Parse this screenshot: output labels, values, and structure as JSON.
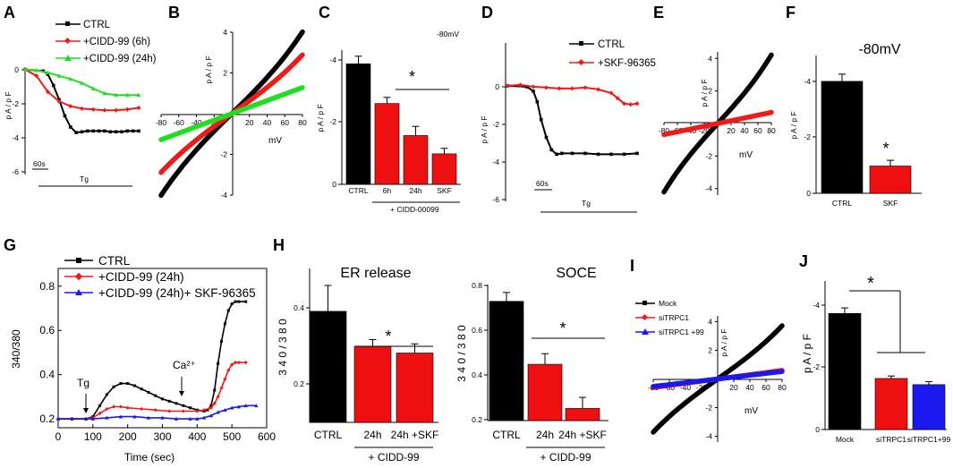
{
  "figure": {
    "panel_labels": [
      "A",
      "B",
      "C",
      "D",
      "E",
      "F",
      "G",
      "H",
      "I",
      "J"
    ]
  },
  "colors": {
    "ctrl": "#000000",
    "cidd6h": "#ee1b1b",
    "cidd24h": "#22dd22",
    "skf": "#ee1b1b",
    "red_bar": "#ee1010",
    "blue": "#1a1aee"
  },
  "chart_data": [
    {
      "panel": "A",
      "type": "line",
      "ylabel": "p A / p F",
      "yticks": [
        "0",
        "-2",
        "-4",
        "-6"
      ],
      "ylim": [
        -6.4,
        0.2
      ],
      "scale_label": "60s",
      "drug_label": "Tg",
      "series": [
        {
          "name": "CTRL",
          "color": "#000000",
          "marker": "square",
          "x": [
            0,
            0.16,
            0.2,
            0.25,
            0.3,
            0.35,
            0.4,
            0.45,
            0.5,
            0.55,
            0.6,
            0.65,
            0.7,
            0.75,
            0.8,
            0.85,
            0.9,
            0.95,
            1.0
          ],
          "y": [
            0,
            -0.1,
            -0.3,
            -1.0,
            -1.9,
            -2.9,
            -3.6,
            -3.95,
            -3.9,
            -3.85,
            -3.85,
            -3.85,
            -3.85,
            -3.9,
            -3.9,
            -3.9,
            -3.85,
            -3.85,
            -3.85
          ]
        },
        {
          "name": "+CIDD-99 (6h)",
          "color": "#ee1b1b",
          "marker": "diamond",
          "x": [
            0,
            0.1,
            0.2,
            0.3,
            0.4,
            0.5,
            0.6,
            0.7,
            0.8,
            0.9,
            1.0
          ],
          "y": [
            0,
            -0.4,
            -1.4,
            -2.0,
            -2.3,
            -2.45,
            -2.5,
            -2.55,
            -2.55,
            -2.5,
            -2.4
          ]
        },
        {
          "name": "+CIDD-99 (24h)",
          "color": "#22dd22",
          "marker": "triangle",
          "x": [
            0,
            0.1,
            0.2,
            0.3,
            0.4,
            0.5,
            0.6,
            0.7,
            0.8,
            0.9,
            1.0
          ],
          "y": [
            0,
            -0.05,
            -0.2,
            -0.4,
            -0.6,
            -0.85,
            -1.2,
            -1.5,
            -1.6,
            -1.6,
            -1.6
          ]
        }
      ]
    },
    {
      "panel": "B",
      "type": "line",
      "xlabel": "mV",
      "ylabel": "p A / p F",
      "xticks": [
        "-80",
        "-60",
        "-40",
        "-20",
        "20",
        "40",
        "60",
        "80"
      ],
      "yticks": [
        "4",
        "2",
        "-2",
        "-4"
      ],
      "xlim": [
        -80,
        80
      ],
      "ylim": [
        -4,
        4
      ],
      "series": [
        {
          "name": "CTRL",
          "color": "#000000",
          "slope": 0.0425,
          "curve": 1.2e-06
        },
        {
          "name": "+CIDD-99 (6h)",
          "color": "#ee1b1b",
          "slope": 0.031,
          "curve": 8e-07
        },
        {
          "name": "+CIDD-99 (24h)",
          "color": "#22dd22",
          "slope": 0.016,
          "curve": 0.0
        }
      ]
    },
    {
      "panel": "C",
      "type": "bar",
      "title": "-80mV",
      "ylabel": "p A / p F",
      "yticks": [
        "-4",
        "-2",
        "0"
      ],
      "ylim": [
        0,
        -4.4
      ],
      "categories": [
        "CTRL",
        "6h",
        "24h",
        "SKF"
      ],
      "values": [
        -3.95,
        -2.65,
        -1.6,
        -1.0
      ],
      "errors": [
        0.25,
        0.2,
        0.3,
        0.18
      ],
      "colors": [
        "#000000",
        "#ee1010",
        "#ee1010",
        "#ee1010"
      ],
      "group_label": "+ CIDD-00099",
      "annotation": "*"
    },
    {
      "panel": "D",
      "type": "line",
      "ylabel": "p A / p F",
      "yticks": [
        "0",
        "-2",
        "-4",
        "-6"
      ],
      "ylim": [
        -6.4,
        0.4
      ],
      "scale_label": "60s",
      "drug_label": "Tg",
      "series": [
        {
          "name": "CTRL",
          "color": "#000000",
          "marker": "square",
          "x": [
            0,
            0.15,
            0.2,
            0.23,
            0.26,
            0.3,
            0.34,
            0.38,
            0.42,
            0.5,
            0.6,
            0.7,
            0.8,
            0.9,
            1.0
          ],
          "y": [
            0,
            -0.05,
            -0.3,
            -0.9,
            -1.9,
            -2.9,
            -3.6,
            -3.85,
            -3.8,
            -3.8,
            -3.8,
            -3.85,
            -3.85,
            -3.85,
            -3.8
          ]
        },
        {
          "name": "+SKF-96365",
          "color": "#ee1b1b",
          "marker": "diamond",
          "x": [
            0,
            0.1,
            0.2,
            0.3,
            0.4,
            0.5,
            0.6,
            0.7,
            0.8,
            0.85,
            0.9,
            0.95,
            1.0
          ],
          "y": [
            0,
            0.05,
            -0.05,
            -0.1,
            -0.15,
            -0.15,
            -0.1,
            -0.2,
            -0.4,
            -0.7,
            -1.0,
            -1.05,
            -1.0
          ]
        }
      ]
    },
    {
      "panel": "E",
      "type": "line",
      "xlabel": "mV",
      "ylabel": "p A / p F",
      "xticks": [
        "-80",
        "-60",
        "-40",
        "-20",
        "20",
        "40",
        "60",
        "80"
      ],
      "yticks": [
        "4",
        "2",
        "-2",
        "-4"
      ],
      "xlim": [
        -80,
        80
      ],
      "ylim": [
        -4.4,
        4.4
      ],
      "series": [
        {
          "name": "CTRL",
          "color": "#000000",
          "slope": 0.045,
          "curve": 1.2e-06
        },
        {
          "name": "+SKF-96365",
          "color": "#ee1b1b",
          "slope": 0.0085,
          "curve": 0.0
        }
      ]
    },
    {
      "panel": "F",
      "type": "bar",
      "title": "-80mV",
      "ylabel": "p A / p F",
      "yticks": [
        "-4",
        "-2",
        "0"
      ],
      "ylim": [
        0,
        -4.8
      ],
      "categories": [
        "CTRL",
        "SKF"
      ],
      "values": [
        -3.9,
        -0.95
      ],
      "errors": [
        0.25,
        0.2
      ],
      "colors": [
        "#000000",
        "#ee1010"
      ],
      "annotation": "*"
    },
    {
      "panel": "G",
      "type": "line",
      "xlabel": "Time (sec)",
      "ylabel": "340/380",
      "xticks": [
        "0",
        "100",
        "200",
        "300",
        "400",
        "500",
        "600"
      ],
      "yticks": [
        "0.2",
        "0.4",
        "0.6",
        "0.8"
      ],
      "xlim": [
        0,
        600
      ],
      "ylim": [
        0.16,
        0.88
      ],
      "annotations": [
        {
          "text": "Tg",
          "x": 90
        },
        {
          "text": "Ca²⁺",
          "x": 418
        }
      ],
      "series": [
        {
          "name": "CTRL",
          "color": "#000000",
          "marker": "square",
          "x": [
            0,
            40,
            80,
            100,
            120,
            140,
            160,
            180,
            200,
            220,
            240,
            260,
            280,
            300,
            320,
            340,
            360,
            380,
            400,
            420,
            430,
            440,
            450,
            460,
            470,
            480,
            490,
            500,
            510,
            520,
            540
          ],
          "y": [
            0.2,
            0.2,
            0.2,
            0.21,
            0.26,
            0.31,
            0.345,
            0.36,
            0.36,
            0.35,
            0.335,
            0.32,
            0.305,
            0.29,
            0.28,
            0.27,
            0.26,
            0.25,
            0.24,
            0.235,
            0.24,
            0.26,
            0.33,
            0.45,
            0.55,
            0.63,
            0.69,
            0.72,
            0.73,
            0.73,
            0.73
          ]
        },
        {
          "name": "+CIDD-99 (24h)",
          "color": "#ee1b1b",
          "marker": "diamond",
          "x": [
            0,
            40,
            80,
            100,
            120,
            140,
            160,
            180,
            200,
            240,
            280,
            320,
            360,
            400,
            420,
            440,
            450,
            460,
            470,
            480,
            490,
            500,
            510,
            520,
            540
          ],
          "y": [
            0.2,
            0.2,
            0.2,
            0.205,
            0.225,
            0.245,
            0.255,
            0.255,
            0.25,
            0.245,
            0.24,
            0.235,
            0.235,
            0.235,
            0.24,
            0.25,
            0.27,
            0.3,
            0.34,
            0.38,
            0.42,
            0.445,
            0.455,
            0.455,
            0.455
          ]
        },
        {
          "name": "+CIDD-99 (24h)+ SKF-96365",
          "color": "#1a1aee",
          "marker": "triangle",
          "x": [
            0,
            40,
            80,
            100,
            140,
            180,
            220,
            260,
            300,
            340,
            380,
            400,
            420,
            440,
            460,
            480,
            500,
            520,
            540,
            570
          ],
          "y": [
            0.2,
            0.2,
            0.2,
            0.2,
            0.205,
            0.21,
            0.21,
            0.205,
            0.205,
            0.2,
            0.2,
            0.2,
            0.205,
            0.215,
            0.23,
            0.24,
            0.25,
            0.255,
            0.26,
            0.26
          ]
        }
      ]
    },
    {
      "panel": "H1",
      "type": "bar",
      "title": "ER release",
      "ylabel": "3 4 0 / 3 8 0",
      "yticks": [
        "0.4",
        "0.2"
      ],
      "ylim": [
        0,
        0.5
      ],
      "categories": [
        "CTRL",
        "24h",
        "24h +SKF"
      ],
      "values": [
        0.365,
        0.25,
        0.228
      ],
      "errors": [
        0.085,
        0.022,
        0.03
      ],
      "colors": [
        "#000000",
        "#ee1010",
        "#ee1010"
      ],
      "group_label": "+ CIDD-99",
      "annotation": "*"
    },
    {
      "panel": "H2",
      "type": "bar",
      "title": "SOCE",
      "ylabel": "3 4 0 / 3 8 0",
      "yticks": [
        "0.8",
        "0.6",
        "0.4",
        "0.2"
      ],
      "ylim": [
        0.2,
        0.82
      ],
      "categories": [
        "CTRL",
        "24h",
        "24h +SKF"
      ],
      "values": [
        0.74,
        0.455,
        0.255
      ],
      "errors": [
        0.04,
        0.048,
        0.05
      ],
      "colors": [
        "#000000",
        "#ee1010",
        "#ee1010"
      ],
      "group_label": "+ CIDD-99",
      "annotation": "*"
    },
    {
      "panel": "I",
      "type": "line",
      "xlabel": "mV",
      "ylabel": "p A / p F",
      "xticks": [
        "-80",
        "-60",
        "-40",
        "-20",
        "20",
        "40",
        "60",
        "80"
      ],
      "yticks": [
        "4",
        "2",
        "-2",
        "-4"
      ],
      "xlim": [
        -80,
        80
      ],
      "ylim": [
        -4.4,
        4.4
      ],
      "series": [
        {
          "name": "Mock",
          "color": "#000000",
          "slope": 0.04,
          "curve": 1e-06
        },
        {
          "name": "siTRPC1",
          "color": "#ee1b1b",
          "slope": 0.0075,
          "curve": 0.0
        },
        {
          "name": "siTRPC1 +99",
          "color": "#1a1aee",
          "slope": 0.0065,
          "curve": 0.0
        }
      ]
    },
    {
      "panel": "J",
      "type": "bar",
      "ylabel": "p A / p F",
      "yticks": [
        "-4",
        "-2",
        "0"
      ],
      "ylim": [
        0,
        -4.8
      ],
      "categories": [
        "Mock",
        "siTRPC1",
        "siTRPC1+99"
      ],
      "values": [
        -3.75,
        -1.65,
        -1.45
      ],
      "errors": [
        0.18,
        0.08,
        0.1
      ],
      "colors": [
        "#000000",
        "#ee1010",
        "#1a1aee"
      ],
      "annotation": "*"
    }
  ]
}
